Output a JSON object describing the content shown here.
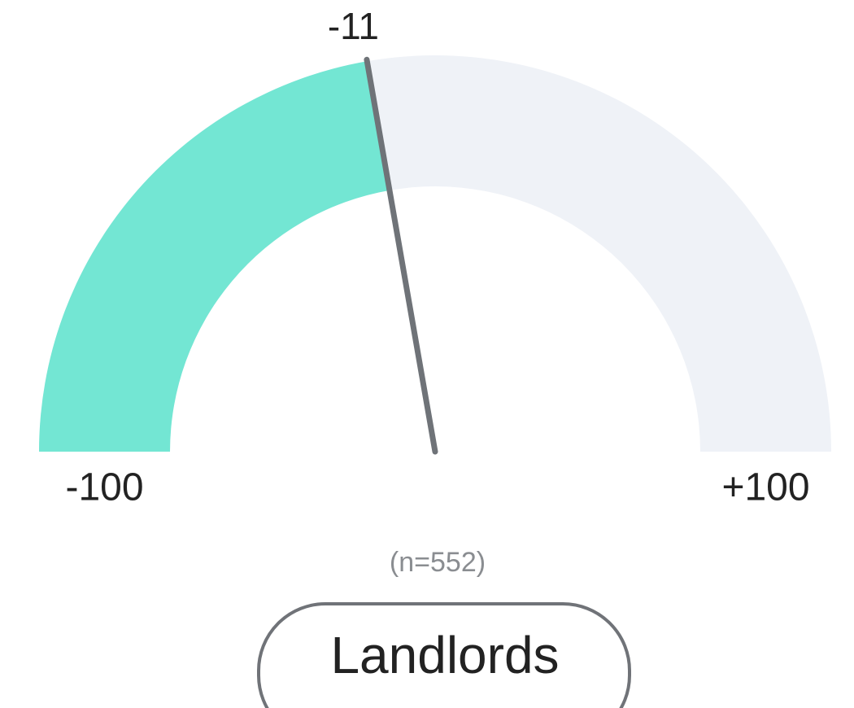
{
  "chart_data": {
    "type": "gauge",
    "value": -11,
    "ylim": [
      -100,
      100
    ],
    "yticks": [
      -100,
      {
        "value": 100,
        "label": "+100"
      }
    ],
    "color": "#73e6d3",
    "track_color": "#eff2f7",
    "needle_color": "#6f7378",
    "note": "(n=552)",
    "label": "Landlords"
  }
}
